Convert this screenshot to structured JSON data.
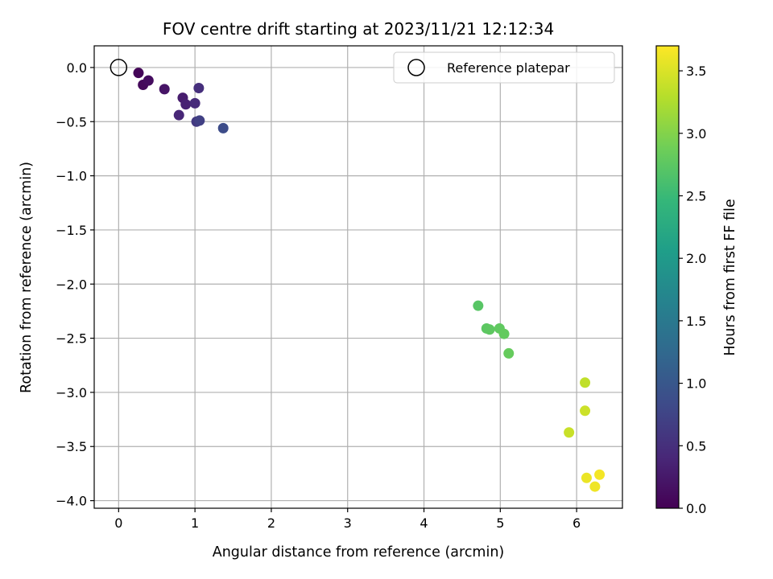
{
  "chart_data": {
    "type": "scatter",
    "title": "FOV centre drift starting at 2023/11/21 12:12:34",
    "xlabel": "Angular distance from reference (arcmin)",
    "ylabel": "Rotation from reference (arcmin)",
    "xlim": [
      -0.32,
      6.6
    ],
    "ylim": [
      -4.07,
      0.2
    ],
    "x_ticks": [
      0,
      1,
      2,
      3,
      4,
      5,
      6
    ],
    "x_tick_labels": [
      "0",
      "1",
      "2",
      "3",
      "4",
      "5",
      "6"
    ],
    "y_ticks": [
      0.0,
      -0.5,
      -1.0,
      -1.5,
      -2.0,
      -2.5,
      -3.0,
      -3.5,
      -4.0
    ],
    "y_tick_labels": [
      "0.0",
      "−0.5",
      "−1.0",
      "−1.5",
      "−2.0",
      "−2.5",
      "−3.0",
      "−3.5",
      "−4.0"
    ],
    "grid": true,
    "colormap": "viridis",
    "colormap_stops": [
      "#440154",
      "#482878",
      "#3e4a89",
      "#31688e",
      "#26828e",
      "#1f9e89",
      "#35b779",
      "#6ece58",
      "#b5de2b",
      "#fde725"
    ],
    "colorbar": {
      "label": "Hours from first FF file",
      "range": [
        0.0,
        3.7
      ],
      "ticks": [
        0.0,
        0.5,
        1.0,
        1.5,
        2.0,
        2.5,
        3.0,
        3.5
      ],
      "tick_labels": [
        "0.0",
        "0.5",
        "1.0",
        "1.5",
        "2.0",
        "2.5",
        "3.0",
        "3.5"
      ]
    },
    "reference": {
      "name": "Reference platepar",
      "x": 0.0,
      "y": 0.0
    },
    "legend": {
      "placement": "top-right",
      "entries": [
        "Reference platepar"
      ]
    },
    "points": [
      {
        "x": 0.26,
        "y": -0.05,
        "hours": 0.05
      },
      {
        "x": 0.32,
        "y": -0.16,
        "hours": 0.08
      },
      {
        "x": 0.39,
        "y": -0.12,
        "hours": 0.12
      },
      {
        "x": 0.6,
        "y": -0.2,
        "hours": 0.2
      },
      {
        "x": 0.84,
        "y": -0.28,
        "hours": 0.3
      },
      {
        "x": 0.88,
        "y": -0.34,
        "hours": 0.35
      },
      {
        "x": 0.79,
        "y": -0.44,
        "hours": 0.4
      },
      {
        "x": 1.0,
        "y": -0.33,
        "hours": 0.45
      },
      {
        "x": 1.05,
        "y": -0.19,
        "hours": 0.5
      },
      {
        "x": 1.02,
        "y": -0.5,
        "hours": 0.62
      },
      {
        "x": 1.06,
        "y": -0.49,
        "hours": 0.7
      },
      {
        "x": 1.37,
        "y": -0.56,
        "hours": 0.85
      },
      {
        "x": 4.71,
        "y": -2.2,
        "hours": 2.72
      },
      {
        "x": 4.82,
        "y": -2.41,
        "hours": 2.75
      },
      {
        "x": 4.86,
        "y": -2.42,
        "hours": 2.76
      },
      {
        "x": 4.99,
        "y": -2.41,
        "hours": 2.78
      },
      {
        "x": 5.05,
        "y": -2.46,
        "hours": 2.8
      },
      {
        "x": 5.11,
        "y": -2.64,
        "hours": 2.82
      },
      {
        "x": 6.11,
        "y": -2.91,
        "hours": 3.35
      },
      {
        "x": 5.9,
        "y": -3.37,
        "hours": 3.4
      },
      {
        "x": 6.11,
        "y": -3.17,
        "hours": 3.42
      },
      {
        "x": 6.13,
        "y": -3.79,
        "hours": 3.6
      },
      {
        "x": 6.24,
        "y": -3.87,
        "hours": 3.62
      },
      {
        "x": 6.3,
        "y": -3.76,
        "hours": 3.65
      }
    ]
  }
}
